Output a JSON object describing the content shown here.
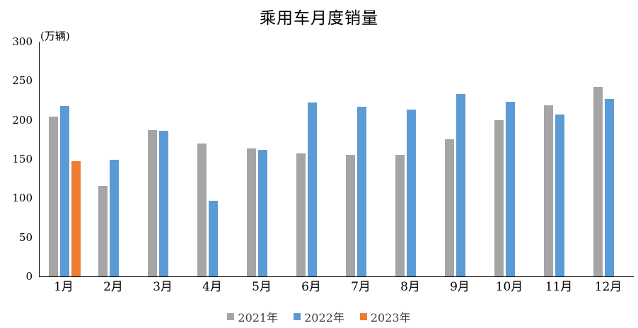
{
  "chart_data": {
    "type": "bar",
    "title": "乘用车月度销量",
    "unit": "(万辆)",
    "categories": [
      "1月",
      "2月",
      "3月",
      "4月",
      "5月",
      "6月",
      "7月",
      "8月",
      "9月",
      "10月",
      "11月",
      "12月"
    ],
    "series": [
      {
        "name": "2021年",
        "color": "#A5A5A5",
        "values": [
          204,
          116,
          187,
          170,
          164,
          157,
          155,
          155,
          175,
          200,
          219,
          242
        ]
      },
      {
        "name": "2022年",
        "color": "#5B9BD5",
        "values": [
          218,
          149,
          186,
          97,
          162,
          222,
          217,
          213,
          233,
          223,
          207,
          227
        ]
      },
      {
        "name": "2023年",
        "color": "#ED7D31",
        "values": [
          147,
          null,
          null,
          null,
          null,
          null,
          null,
          null,
          null,
          null,
          null,
          null
        ]
      }
    ],
    "ylim": [
      0,
      300
    ],
    "yticks": [
      0,
      50,
      100,
      150,
      200,
      250,
      300
    ],
    "grid": false,
    "legend_position": "bottom",
    "axis_color": "#000000",
    "background": "#FFFFFF"
  }
}
